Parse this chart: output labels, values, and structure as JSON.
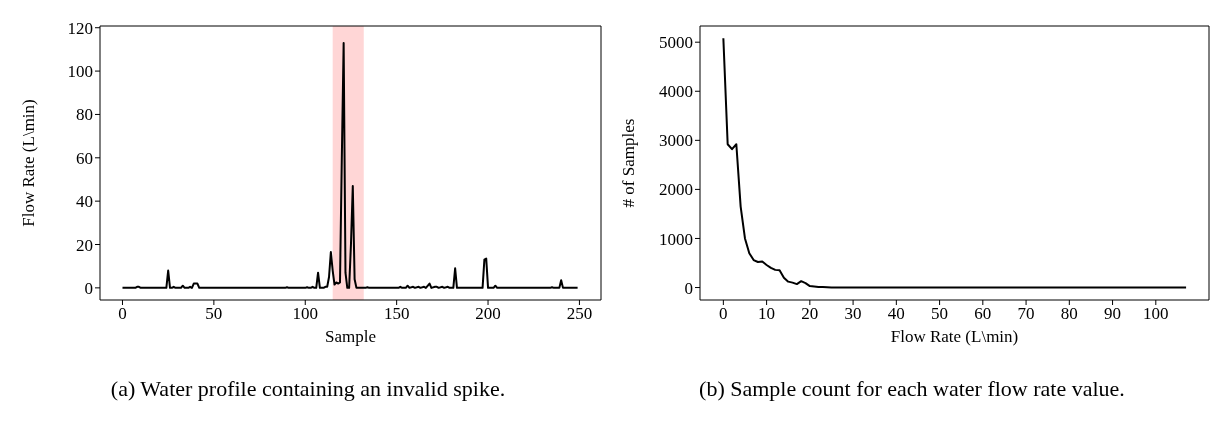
{
  "chart_data": [
    {
      "type": "line",
      "xlabel": "Sample",
      "ylabel": "Flow Rate (L\\min)",
      "xlim": [
        -12.3,
        261.8
      ],
      "ylim": [
        -5.6,
        120.8
      ],
      "xticks": [
        0,
        50,
        100,
        150,
        200,
        250
      ],
      "yticks": [
        0,
        20,
        40,
        60,
        80,
        100,
        120
      ],
      "grid": false,
      "legend": false,
      "marker": "none",
      "line_style": "solid",
      "series": [
        {
          "color": "#000000",
          "x": [
            0,
            7,
            8,
            9,
            10,
            24,
            25,
            26,
            27,
            28,
            29,
            32,
            33,
            34,
            36,
            37,
            38,
            39,
            41,
            42,
            89,
            90,
            91,
            100,
            101,
            102,
            103,
            104,
            105,
            106,
            107,
            108,
            110,
            111,
            112,
            113,
            114,
            115,
            116,
            117,
            118,
            119,
            120,
            121,
            122,
            123,
            124,
            125,
            126,
            127,
            128,
            133,
            134,
            135,
            151,
            152,
            153,
            155,
            156,
            157,
            159,
            160,
            162,
            163,
            165,
            166,
            168,
            169,
            171,
            172,
            173,
            175,
            176,
            178,
            179,
            181,
            182,
            183,
            197,
            198,
            199,
            200,
            203,
            204,
            205,
            234,
            235,
            236,
            239,
            240,
            241,
            249
          ],
          "values": [
            0,
            0,
            0.5,
            0.5,
            0,
            0,
            8,
            0,
            0,
            0.5,
            0,
            0,
            1,
            0,
            0,
            0.5,
            0,
            2,
            2,
            0,
            0,
            0.3,
            0,
            0,
            0.3,
            0,
            0,
            0.5,
            0,
            0,
            7,
            0,
            0,
            0.5,
            0.5,
            5,
            16.5,
            8,
            1.5,
            2.5,
            2,
            2.5,
            60,
            113,
            7,
            0,
            0,
            20,
            47,
            4,
            0,
            0,
            0.3,
            0,
            0,
            0.5,
            0,
            0,
            1,
            0,
            0.5,
            0,
            0.5,
            0,
            0.5,
            0,
            2,
            0,
            0.5,
            0.5,
            0,
            0.5,
            0,
            0.5,
            0,
            0,
            9,
            0,
            0,
            13,
            13.5,
            0,
            0,
            1,
            0,
            0,
            0.3,
            0,
            0,
            3.5,
            0,
            0
          ]
        }
      ],
      "bands": [
        {
          "axis": "x",
          "from": 115,
          "to": 132,
          "color": "#ffd6d6"
        }
      ],
      "annotations": [
        "(a) Water profile containing an invalid spike."
      ]
    },
    {
      "type": "line",
      "xlabel": "Flow Rate (L\\min)",
      "ylabel": "# of Samples",
      "xlim": [
        -5.4,
        112.3
      ],
      "ylim": [
        -254,
        5330
      ],
      "xticks": [
        0,
        10,
        20,
        30,
        40,
        50,
        60,
        70,
        80,
        90,
        100
      ],
      "yticks": [
        0,
        1000,
        2000,
        3000,
        4000,
        5000
      ],
      "grid": false,
      "legend": false,
      "marker": "none",
      "line_style": "solid",
      "series": [
        {
          "color": "#000000",
          "x": [
            0,
            1,
            2,
            3,
            4,
            5,
            6,
            7,
            8,
            9,
            10,
            11,
            12,
            13,
            14,
            15,
            16,
            17,
            18,
            19,
            20,
            21,
            22,
            23,
            25,
            30,
            40,
            50,
            60,
            70,
            80,
            90,
            100,
            107
          ],
          "values": [
            5080,
            2920,
            2820,
            2920,
            1650,
            1000,
            700,
            560,
            520,
            530,
            460,
            400,
            360,
            350,
            200,
            120,
            100,
            70,
            130,
            90,
            30,
            20,
            10,
            10,
            0,
            0,
            0,
            0,
            0,
            0,
            0,
            0,
            0,
            0
          ]
        }
      ],
      "annotations": [
        "(b) Sample count for each water flow rate value."
      ]
    }
  ]
}
